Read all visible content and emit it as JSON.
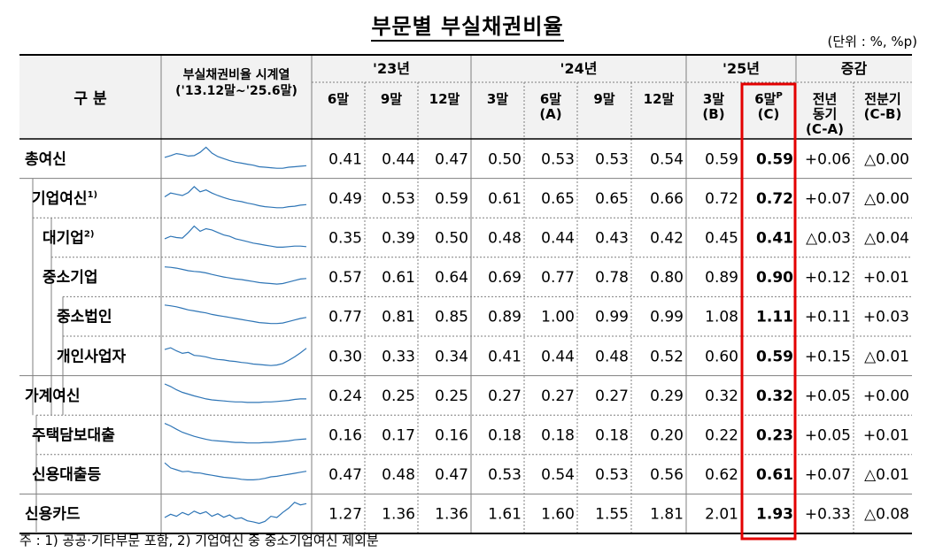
{
  "title": "부문별 부실채권비율",
  "unit": "(단위 : %, %p)",
  "note": "주 : 1) 공공·기타부문 포함, 2) 기업여신 중 중소기업여신 제외분",
  "header": {
    "category": "구 분",
    "spark_title_line1": "부실채권비율 시계열",
    "spark_title_line2": "('13.12말~'25.6말)",
    "year_groups": [
      "'23년",
      "'24년",
      "'25년",
      "증감"
    ],
    "columns": [
      {
        "line1": "6말",
        "line2": ""
      },
      {
        "line1": "9말",
        "line2": ""
      },
      {
        "line1": "12말",
        "line2": ""
      },
      {
        "line1": "3말",
        "line2": ""
      },
      {
        "line1": "6말",
        "line2": "(A)"
      },
      {
        "line1": "9말",
        "line2": ""
      },
      {
        "line1": "12말",
        "line2": ""
      },
      {
        "line1": "3말",
        "line2": "(B)"
      },
      {
        "line1": "6말",
        "line2": "(C)",
        "sup": "P"
      },
      {
        "line1": "전년",
        "line2": "동기",
        "line3": "(C-A)"
      },
      {
        "line1": "전분기",
        "line2": "(C-B)"
      }
    ]
  },
  "rows": [
    {
      "label": "총여신",
      "sup": "",
      "indent": 0,
      "values": [
        "0.41",
        "0.44",
        "0.47",
        "0.50",
        "0.53",
        "0.53",
        "0.54",
        "0.59",
        "0.59",
        "+0.06",
        "△0.00"
      ],
      "spark": [
        0.55,
        0.62,
        0.7,
        0.66,
        0.6,
        0.62,
        0.75,
        0.95,
        0.72,
        0.58,
        0.5,
        0.42,
        0.36,
        0.32,
        0.28,
        0.24,
        0.18,
        0.16,
        0.14,
        0.12,
        0.12,
        0.16,
        0.18,
        0.2,
        0.22
      ]
    },
    {
      "label": "기업여신",
      "sup": "1)",
      "indent": 1,
      "values": [
        "0.49",
        "0.53",
        "0.59",
        "0.61",
        "0.65",
        "0.65",
        "0.66",
        "0.72",
        "0.72",
        "+0.07",
        "△0.00"
      ],
      "spark": [
        0.55,
        0.7,
        0.65,
        0.6,
        0.72,
        0.95,
        0.75,
        0.82,
        0.7,
        0.6,
        0.52,
        0.45,
        0.4,
        0.36,
        0.3,
        0.26,
        0.2,
        0.16,
        0.14,
        0.12,
        0.12,
        0.16,
        0.18,
        0.22,
        0.24
      ]
    },
    {
      "label": "대기업",
      "sup": "2)",
      "indent": 2,
      "values": [
        "0.35",
        "0.39",
        "0.50",
        "0.48",
        "0.44",
        "0.43",
        "0.42",
        "0.45",
        "0.41",
        "△0.03",
        "△0.04"
      ],
      "spark": [
        0.45,
        0.55,
        0.5,
        0.48,
        0.7,
        0.95,
        0.75,
        0.85,
        0.8,
        0.7,
        0.6,
        0.55,
        0.45,
        0.4,
        0.34,
        0.28,
        0.24,
        0.2,
        0.16,
        0.12,
        0.12,
        0.14,
        0.16,
        0.16,
        0.14
      ]
    },
    {
      "label": "중소기업",
      "sup": "",
      "indent": 2,
      "values": [
        "0.57",
        "0.61",
        "0.64",
        "0.69",
        "0.77",
        "0.78",
        "0.80",
        "0.89",
        "0.90",
        "+0.12",
        "+0.01"
      ],
      "spark": [
        0.9,
        0.88,
        0.85,
        0.8,
        0.75,
        0.72,
        0.7,
        0.66,
        0.6,
        0.55,
        0.5,
        0.46,
        0.42,
        0.4,
        0.36,
        0.32,
        0.28,
        0.26,
        0.24,
        0.22,
        0.24,
        0.3,
        0.36,
        0.42,
        0.44
      ]
    },
    {
      "label": "중소법인",
      "sup": "",
      "indent": 3,
      "values": [
        "0.77",
        "0.81",
        "0.85",
        "0.89",
        "1.00",
        "0.99",
        "0.99",
        "1.08",
        "1.11",
        "+0.11",
        "+0.03"
      ],
      "spark": [
        0.95,
        0.92,
        0.88,
        0.82,
        0.76,
        0.72,
        0.68,
        0.64,
        0.58,
        0.54,
        0.5,
        0.46,
        0.42,
        0.38,
        0.34,
        0.3,
        0.26,
        0.24,
        0.22,
        0.22,
        0.24,
        0.3,
        0.36,
        0.42,
        0.46
      ]
    },
    {
      "label": "개인사업자",
      "sup": "",
      "indent": 3,
      "values": [
        "0.30",
        "0.33",
        "0.34",
        "0.41",
        "0.44",
        "0.48",
        "0.52",
        "0.60",
        "0.59",
        "+0.15",
        "△0.01"
      ],
      "spark": [
        0.75,
        0.82,
        0.7,
        0.6,
        0.64,
        0.52,
        0.5,
        0.46,
        0.4,
        0.36,
        0.34,
        0.3,
        0.28,
        0.24,
        0.22,
        0.18,
        0.16,
        0.14,
        0.12,
        0.14,
        0.2,
        0.32,
        0.46,
        0.62,
        0.8
      ]
    },
    {
      "label": "가계여신",
      "sup": "",
      "indent": 0,
      "values": [
        "0.24",
        "0.25",
        "0.25",
        "0.27",
        "0.27",
        "0.27",
        "0.29",
        "0.32",
        "0.32",
        "+0.05",
        "+0.00"
      ],
      "spark": [
        0.95,
        0.85,
        0.72,
        0.62,
        0.55,
        0.48,
        0.42,
        0.36,
        0.32,
        0.3,
        0.28,
        0.26,
        0.24,
        0.24,
        0.22,
        0.22,
        0.22,
        0.24,
        0.24,
        0.26,
        0.28,
        0.3,
        0.34,
        0.36,
        0.36
      ]
    },
    {
      "label": "주택담보대출",
      "sup": "",
      "indent": 1,
      "values": [
        "0.16",
        "0.17",
        "0.16",
        "0.18",
        "0.18",
        "0.18",
        "0.20",
        "0.22",
        "0.23",
        "+0.05",
        "+0.01"
      ],
      "spark": [
        0.95,
        0.85,
        0.72,
        0.6,
        0.52,
        0.44,
        0.38,
        0.32,
        0.28,
        0.26,
        0.24,
        0.22,
        0.2,
        0.2,
        0.18,
        0.18,
        0.18,
        0.2,
        0.2,
        0.22,
        0.24,
        0.26,
        0.3,
        0.32,
        0.34
      ]
    },
    {
      "label": "신용대출등",
      "sup": "",
      "indent": 1,
      "values": [
        "0.47",
        "0.48",
        "0.47",
        "0.53",
        "0.54",
        "0.53",
        "0.56",
        "0.62",
        "0.61",
        "+0.07",
        "△0.01"
      ],
      "spark": [
        0.95,
        0.75,
        0.68,
        0.6,
        0.62,
        0.56,
        0.55,
        0.5,
        0.46,
        0.42,
        0.38,
        0.36,
        0.34,
        0.3,
        0.28,
        0.28,
        0.3,
        0.34,
        0.4,
        0.42,
        0.46,
        0.5,
        0.54,
        0.58,
        0.62
      ]
    },
    {
      "label": "신용카드",
      "sup": "",
      "indent": 0,
      "values": [
        "1.27",
        "1.36",
        "1.36",
        "1.61",
        "1.60",
        "1.55",
        "1.81",
        "2.01",
        "1.93",
        "+0.33",
        "△0.08"
      ],
      "spark": [
        0.35,
        0.48,
        0.4,
        0.55,
        0.45,
        0.6,
        0.5,
        0.58,
        0.4,
        0.5,
        0.36,
        0.45,
        0.3,
        0.34,
        0.22,
        0.18,
        0.12,
        0.2,
        0.4,
        0.35,
        0.55,
        0.72,
        0.95,
        0.85,
        0.9
      ]
    }
  ],
  "colors": {
    "spark_line": "#2E75B6",
    "highlight_box": "#E30000",
    "header_bg": "#F2F2F2",
    "grid": "#7F7F7F"
  }
}
